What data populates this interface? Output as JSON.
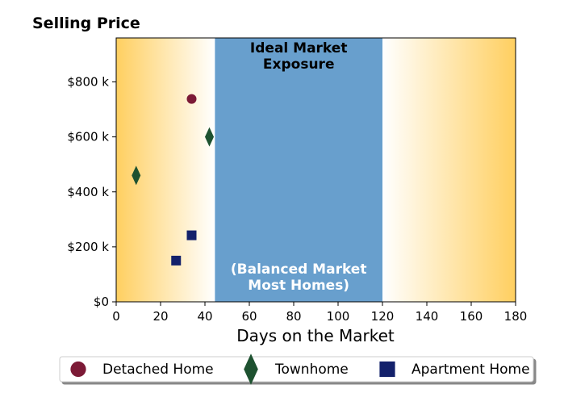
{
  "chart_data": {
    "type": "scatter",
    "title": "Selling Price",
    "xlabel": "Days on the Market",
    "ylabel": "",
    "xlim": [
      0,
      180
    ],
    "ylim": [
      0,
      960
    ],
    "x_ticks": [
      0,
      20,
      40,
      60,
      80,
      100,
      120,
      140,
      160,
      180
    ],
    "x_tick_labels": [
      "0",
      "20",
      "40",
      "60",
      "80",
      "100",
      "120",
      "140",
      "160",
      "180"
    ],
    "y_ticks": [
      0,
      200,
      400,
      600,
      800
    ],
    "y_tick_labels": [
      "$0",
      "$200 k",
      "$400 k",
      "$600 k",
      "$800 k"
    ],
    "grid": false,
    "legend_position": "bottom",
    "ideal_region": {
      "x_range": [
        44.5,
        120
      ],
      "color": "#689fcd",
      "title_lines": [
        "Ideal Market",
        "Exposure"
      ],
      "subtitle_lines": [
        "(Balanced Market",
        "Most Homes)"
      ]
    },
    "background_gradient": {
      "outer_color": "#ffcf60",
      "inner_color": "#ffffff"
    },
    "series": [
      {
        "name": "Detached Home",
        "marker": "circle",
        "color": "#7c1a36",
        "points": [
          {
            "x": 34,
            "y": 738
          }
        ]
      },
      {
        "name": "Townhome",
        "marker": "diamond",
        "color": "#1e5230",
        "points": [
          {
            "x": 9,
            "y": 460
          },
          {
            "x": 42,
            "y": 600
          }
        ]
      },
      {
        "name": "Apartment Home",
        "marker": "square",
        "color": "#13216b",
        "points": [
          {
            "x": 27,
            "y": 150
          },
          {
            "x": 34,
            "y": 242
          }
        ]
      }
    ]
  }
}
